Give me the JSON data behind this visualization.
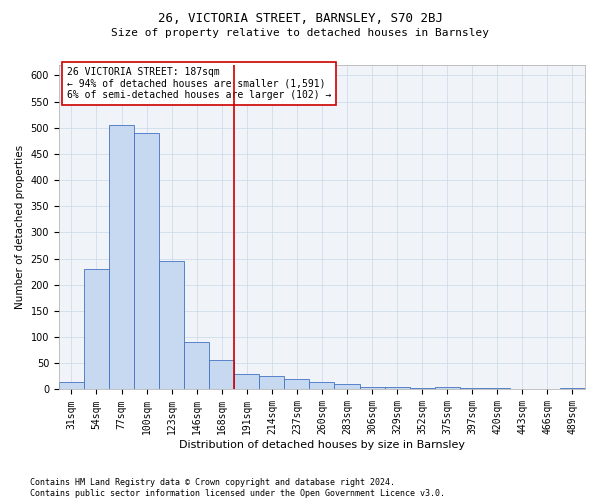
{
  "title_line1": "26, VICTORIA STREET, BARNSLEY, S70 2BJ",
  "title_line2": "Size of property relative to detached houses in Barnsley",
  "xlabel": "Distribution of detached houses by size in Barnsley",
  "ylabel": "Number of detached properties",
  "footnote": "Contains HM Land Registry data © Crown copyright and database right 2024.\nContains public sector information licensed under the Open Government Licence v3.0.",
  "bar_labels": [
    "31sqm",
    "54sqm",
    "77sqm",
    "100sqm",
    "123sqm",
    "146sqm",
    "168sqm",
    "191sqm",
    "214sqm",
    "237sqm",
    "260sqm",
    "283sqm",
    "306sqm",
    "329sqm",
    "352sqm",
    "375sqm",
    "397sqm",
    "420sqm",
    "443sqm",
    "466sqm",
    "489sqm"
  ],
  "bar_values": [
    15,
    230,
    505,
    490,
    245,
    90,
    57,
    30,
    25,
    20,
    15,
    10,
    5,
    5,
    3,
    5,
    3,
    3,
    1,
    1,
    3
  ],
  "bar_color": "#c6d9f1",
  "bar_edge_color": "#4472c4",
  "vline_x_index": 7,
  "vline_color": "#cc0000",
  "annotation_title": "26 VICTORIA STREET: 187sqm",
  "annotation_line2": "← 94% of detached houses are smaller (1,591)",
  "annotation_line3": "6% of semi-detached houses are larger (102) →",
  "annotation_box_color": "#ffffff",
  "annotation_box_edge": "#cc0000",
  "ylim": [
    0,
    620
  ],
  "yticks": [
    0,
    50,
    100,
    150,
    200,
    250,
    300,
    350,
    400,
    450,
    500,
    550,
    600
  ],
  "background_color": "#f0f4f8",
  "grid_color": "#c8d8e8",
  "fig_bg_color": "#ffffff",
  "title1_fontsize": 9,
  "title2_fontsize": 8,
  "xlabel_fontsize": 8,
  "ylabel_fontsize": 7.5,
  "tick_fontsize": 7,
  "annot_fontsize": 7,
  "footnote_fontsize": 6
}
